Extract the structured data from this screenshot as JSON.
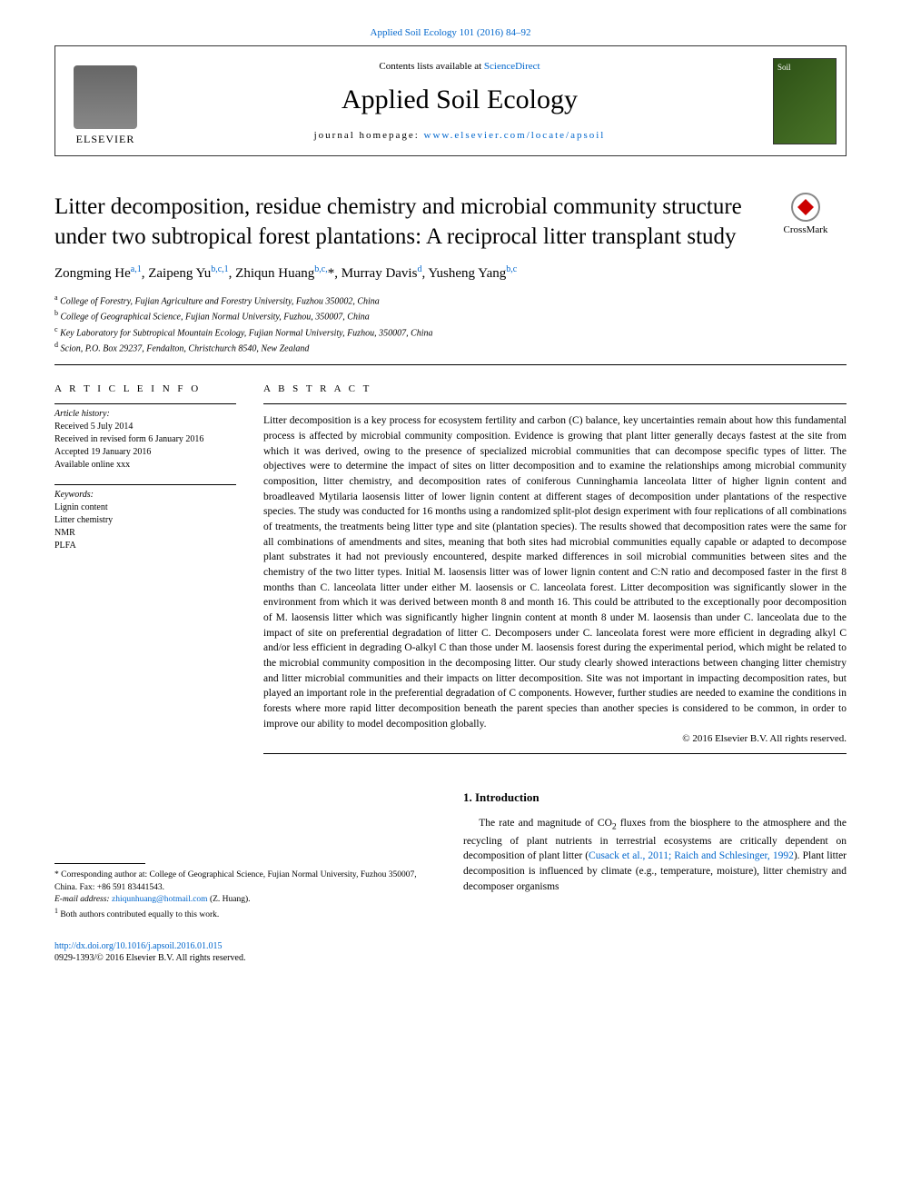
{
  "header": {
    "citation": "Applied Soil Ecology 101 (2016) 84–92",
    "contents_prefix": "Contents lists available at ",
    "contents_link": "ScienceDirect",
    "journal_name": "Applied Soil Ecology",
    "homepage_prefix": "journal homepage: ",
    "homepage_url": "www.elsevier.com/locate/apsoil",
    "publisher_label": "ELSEVIER",
    "cover_label": "Soil"
  },
  "crossmark": "CrossMark",
  "title": "Litter decomposition, residue chemistry and microbial community structure under two subtropical forest plantations: A reciprocal litter transplant study",
  "authors_html": "Zongming He<sup>a,1</sup>, Zaipeng Yu<sup>b,c,1</sup>, Zhiqun Huang<sup>b,c,</sup>*, Murray Davis<sup>d</sup>, Yusheng Yang<sup>b,c</sup>",
  "affiliations": [
    {
      "sup": "a",
      "text": "College of Forestry, Fujian Agriculture and Forestry University, Fuzhou 350002, China"
    },
    {
      "sup": "b",
      "text": "College of Geographical Science, Fujian Normal University, Fuzhou, 350007, China"
    },
    {
      "sup": "c",
      "text": "Key Laboratory for Subtropical Mountain Ecology, Fujian Normal University, Fuzhou, 350007, China"
    },
    {
      "sup": "d",
      "text": "Scion, P.O. Box 29237, Fendalton, Christchurch 8540, New Zealand"
    }
  ],
  "article_info": {
    "heading": "A R T I C L E  I N F O",
    "history_label": "Article history:",
    "history": [
      "Received 5 July 2014",
      "Received in revised form 6 January 2016",
      "Accepted 19 January 2016",
      "Available online xxx"
    ],
    "keywords_label": "Keywords:",
    "keywords": [
      "Lignin content",
      "Litter chemistry",
      "NMR",
      "PLFA"
    ]
  },
  "abstract": {
    "heading": "A B S T R A C T",
    "text": "Litter decomposition is a key process for ecosystem fertility and carbon (C) balance, key uncertainties remain about how this fundamental process is affected by microbial community composition. Evidence is growing that plant litter generally decays fastest at the site from which it was derived, owing to the presence of specialized microbial communities that can decompose specific types of litter. The objectives were to determine the impact of sites on litter decomposition and to examine the relationships among microbial community composition, litter chemistry, and decomposition rates of coniferous Cunninghamia lanceolata litter of higher lignin content and broadleaved Mytilaria laosensis litter of lower lignin content at different stages of decomposition under plantations of the respective species. The study was conducted for 16 months using a randomized split-plot design experiment with four replications of all combinations of treatments, the treatments being litter type and site (plantation species). The results showed that decomposition rates were the same for all combinations of amendments and sites, meaning that both sites had microbial communities equally capable or adapted to decompose plant substrates it had not previously encountered, despite marked differences in soil microbial communities between sites and the chemistry of the two litter types. Initial M. laosensis litter was of lower lignin content and C:N ratio and decomposed faster in the first 8 months than C. lanceolata litter under either M. laosensis or C. lanceolata forest. Litter decomposition was significantly slower in the environment from which it was derived between month 8 and month 16. This could be attributed to the exceptionally poor decomposition of M. laosensis litter which was significantly higher lingnin content at month 8 under M. laosensis than under C. lanceolata due to the impact of site on preferential degradation of litter C. Decomposers under C. lanceolata forest were more efficient in degrading alkyl C and/or less efficient in degrading O-alkyl C than those under M. laosensis forest during the experimental period, which might be related to the microbial community composition in the decomposing litter. Our study clearly showed interactions between changing litter chemistry and litter microbial communities and their impacts on litter decomposition. Site was not important in impacting decomposition rates, but played an important role in the preferential degradation of C components. However, further studies are needed to examine the conditions in forests where more rapid litter decomposition beneath the parent species than another species is considered to be common, in order to improve our ability to model decomposition globally.",
    "copyright": "© 2016 Elsevier B.V. All rights reserved."
  },
  "footnotes": {
    "corresponding": "* Corresponding author at: College of Geographical Science, Fujian Normal University, Fuzhou 350007, China. Fax: +86 591 83441543.",
    "email_label": "E-mail address: ",
    "email": "zhiqunhuang@hotmail.com",
    "email_name": " (Z. Huang).",
    "equal": "Both authors contributed equally to this work.",
    "equal_sup": "1"
  },
  "intro": {
    "heading": "1. Introduction",
    "text_pre": "The rate and magnitude of CO",
    "text_sub": "2",
    "text_mid": " fluxes from the biosphere to the atmosphere and the recycling of plant nutrients in terrestrial ecosystems are critically dependent on decomposition of plant litter (",
    "citation": "Cusack et al., 2011; Raich and Schlesinger, 1992",
    "text_post": "). Plant litter decomposition is influenced by climate (e.g., temperature, moisture), litter chemistry and decomposer organisms"
  },
  "doi": {
    "url": "http://dx.doi.org/10.1016/j.apsoil.2016.01.015",
    "issn": "0929-1393/© 2016 Elsevier B.V. All rights reserved."
  },
  "colors": {
    "link": "#0066cc",
    "text": "#000000",
    "cover_bg": "#2d5016"
  }
}
